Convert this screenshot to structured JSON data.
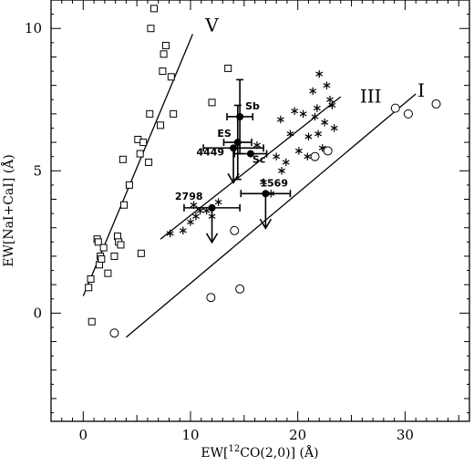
{
  "chart_data": {
    "type": "scatter",
    "xlabel": "EW[",
    "xlabel_sup": "12",
    "xlabel_rest": "CO(2,0)] (Å)",
    "ylabel": "EW[NaI+CaI] (Å)",
    "xlim": [
      -3,
      36
    ],
    "ylim": [
      -3.8,
      11
    ],
    "xticks": [
      0,
      10,
      20,
      30
    ],
    "yticks": [
      0,
      5,
      10
    ],
    "series": [
      {
        "marker": "square",
        "points": [
          [
            0.5,
            0.9
          ],
          [
            0.7,
            1.2
          ],
          [
            0.8,
            -0.3
          ],
          [
            1.3,
            2.6
          ],
          [
            1.4,
            2.5
          ],
          [
            1.5,
            1.7
          ],
          [
            1.6,
            2.0
          ],
          [
            1.7,
            1.9
          ],
          [
            1.9,
            2.3
          ],
          [
            2.3,
            1.4
          ],
          [
            2.9,
            2.0
          ],
          [
            3.2,
            2.7
          ],
          [
            3.3,
            2.5
          ],
          [
            3.5,
            2.4
          ],
          [
            3.7,
            5.4
          ],
          [
            3.8,
            3.8
          ],
          [
            4.3,
            4.5
          ],
          [
            5.1,
            6.1
          ],
          [
            5.3,
            5.6
          ],
          [
            5.4,
            2.1
          ],
          [
            5.6,
            6.0
          ],
          [
            6.1,
            5.3
          ],
          [
            6.2,
            7.0
          ],
          [
            6.3,
            10.0
          ],
          [
            6.6,
            10.7
          ],
          [
            7.2,
            6.6
          ],
          [
            7.4,
            8.5
          ],
          [
            7.5,
            9.1
          ],
          [
            7.7,
            9.4
          ],
          [
            8.2,
            8.3
          ],
          [
            8.4,
            7.0
          ],
          [
            12.0,
            7.4
          ],
          [
            13.5,
            8.6
          ]
        ]
      },
      {
        "marker": "asterisk",
        "points": [
          [
            8.1,
            2.8
          ],
          [
            9.3,
            2.9
          ],
          [
            10.0,
            3.2
          ],
          [
            10.3,
            3.8
          ],
          [
            10.5,
            3.4
          ],
          [
            10.9,
            3.6
          ],
          [
            11.5,
            3.6
          ],
          [
            12.0,
            3.4
          ],
          [
            12.6,
            3.9
          ],
          [
            16.2,
            5.9
          ],
          [
            16.8,
            4.6
          ],
          [
            17.5,
            4.2
          ],
          [
            18.0,
            5.5
          ],
          [
            18.4,
            6.8
          ],
          [
            18.5,
            5.0
          ],
          [
            18.9,
            5.3
          ],
          [
            19.3,
            6.3
          ],
          [
            19.7,
            7.1
          ],
          [
            20.1,
            5.7
          ],
          [
            20.5,
            7.0
          ],
          [
            20.9,
            5.5
          ],
          [
            21.0,
            6.2
          ],
          [
            21.4,
            7.8
          ],
          [
            21.6,
            6.9
          ],
          [
            21.8,
            7.2
          ],
          [
            21.9,
            6.3
          ],
          [
            22.0,
            8.4
          ],
          [
            22.3,
            5.8
          ],
          [
            22.5,
            6.7
          ],
          [
            22.7,
            8.0
          ],
          [
            23.0,
            7.5
          ],
          [
            23.2,
            7.3
          ],
          [
            23.4,
            6.5
          ]
        ]
      },
      {
        "marker": "circle",
        "points": [
          [
            2.9,
            -0.7
          ],
          [
            11.9,
            0.55
          ],
          [
            14.6,
            0.85
          ],
          [
            14.1,
            2.9
          ],
          [
            21.6,
            5.5
          ],
          [
            22.8,
            5.7
          ],
          [
            29.1,
            7.2
          ],
          [
            30.3,
            7.0
          ],
          [
            32.9,
            7.35
          ]
        ]
      }
    ],
    "labeled_points": [
      {
        "label": "Sb",
        "x": 14.6,
        "y": 6.9,
        "xerr": 1.2,
        "yerr_lo": 1.3,
        "yerr_hi": 1.3,
        "arrow": false
      },
      {
        "label": "ES",
        "x": 14.4,
        "y": 6.0,
        "xerr": 1.3,
        "yerr_lo": 1.3,
        "yerr_hi": 1.3,
        "arrow": false
      },
      {
        "label": "4449",
        "x": 14.0,
        "y": 5.8,
        "xerr": 2.8,
        "yerr_lo": 0,
        "yerr_hi": 0,
        "arrow": true
      },
      {
        "label": "Sc",
        "x": 15.6,
        "y": 5.6,
        "xerr": 1.5,
        "yerr_lo": 0,
        "yerr_hi": 0,
        "arrow": false
      },
      {
        "label": "2798",
        "x": 12.0,
        "y": 3.7,
        "xerr": 2.6,
        "yerr_lo": 0,
        "yerr_hi": 0,
        "arrow": true
      },
      {
        "label": "1569",
        "x": 17.0,
        "y": 4.2,
        "xerr": 2.3,
        "yerr_lo": 0,
        "yerr_hi": 0,
        "arrow": true
      }
    ],
    "lines": [
      {
        "label": "V",
        "x1": 0,
        "y1": 0.6,
        "x2": 10.2,
        "y2": 9.8,
        "label_x": 12.0,
        "label_y": 9.9
      },
      {
        "label": "III",
        "x1": 7.2,
        "y1": 2.6,
        "x2": 24.0,
        "y2": 7.6,
        "label_x": 26.8,
        "label_y": 7.4
      },
      {
        "label": "I",
        "x1": 4.0,
        "y1": -0.85,
        "x2": 31.0,
        "y2": 7.7,
        "label_x": 31.5,
        "label_y": 7.6
      }
    ]
  }
}
